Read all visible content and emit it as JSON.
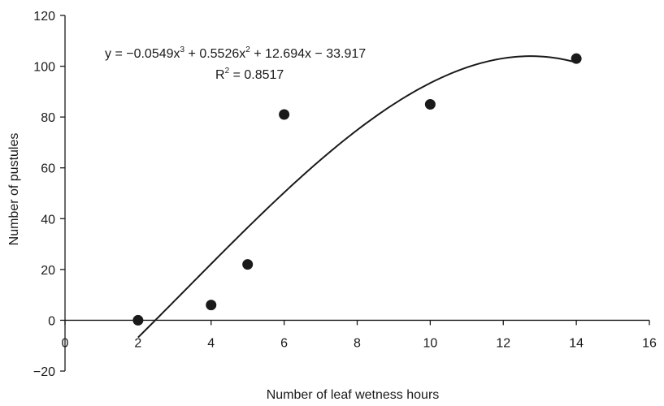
{
  "chart_data": {
    "type": "scatter",
    "xlabel": "Number of leaf wetness hours",
    "ylabel": "Number of pustules",
    "xlim": [
      0,
      16
    ],
    "ylim": [
      -20,
      120
    ],
    "x_ticks": [
      0,
      2,
      4,
      6,
      8,
      10,
      12,
      14,
      16
    ],
    "y_ticks": [
      -20,
      0,
      20,
      40,
      60,
      80,
      100,
      120
    ],
    "x_tick_labels": [
      "0",
      "2",
      "4",
      "6",
      "8",
      "10",
      "12",
      "14",
      "16"
    ],
    "y_tick_labels": [
      "−20",
      "0",
      "20",
      "40",
      "60",
      "80",
      "100",
      "120"
    ],
    "grid": false,
    "legend": "none",
    "series": [
      {
        "x": [
          2,
          4,
          5,
          6,
          10,
          14
        ],
        "y": [
          0,
          6,
          22,
          81,
          85,
          103
        ],
        "marker": "filled-circle",
        "color": "#1a1a1a"
      }
    ],
    "trendline": {
      "type": "polynomial",
      "order": 3,
      "coefficients": [
        -0.0549,
        0.5526,
        12.694,
        -33.917
      ],
      "x_range": [
        2,
        14
      ],
      "color": "#1a1a1a"
    },
    "annotations": {
      "equation": {
        "p1": "y = −0.0549x",
        "s1": "3",
        "p2": " + 0.5526x",
        "s2": "2",
        "p3": " + 12.694x − 33.917"
      },
      "r_squared": {
        "p1": "R",
        "s1": "2",
        "p2": " = 0.8517"
      }
    }
  }
}
